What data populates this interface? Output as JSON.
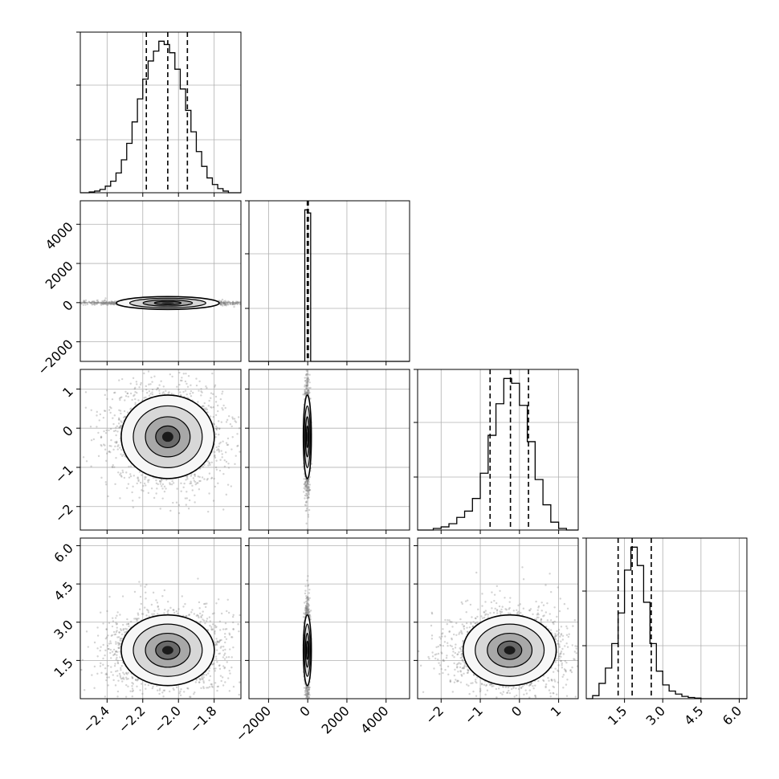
{
  "chart_data": [
    {
      "type": "histogram",
      "panel": "diag-0",
      "xlim": [
        -2.55,
        -1.65
      ],
      "grid": true,
      "bins_x": [
        -2.5,
        -2.47,
        -2.44,
        -2.41,
        -2.38,
        -2.35,
        -2.32,
        -2.29,
        -2.26,
        -2.23,
        -2.2,
        -2.17,
        -2.14,
        -2.11,
        -2.08,
        -2.05,
        -2.02,
        -1.99,
        -1.96,
        -1.93,
        -1.9,
        -1.87,
        -1.84,
        -1.81,
        -1.78,
        -1.75,
        -1.72
      ],
      "counts": [
        0.005,
        0.01,
        0.02,
        0.04,
        0.07,
        0.12,
        0.2,
        0.3,
        0.43,
        0.57,
        0.69,
        0.8,
        0.86,
        0.92,
        0.9,
        0.85,
        0.75,
        0.63,
        0.5,
        0.37,
        0.25,
        0.16,
        0.09,
        0.05,
        0.025,
        0.01
      ],
      "quantile_lines": [
        -2.18,
        -2.06,
        -1.95
      ]
    },
    {
      "type": "histogram",
      "panel": "diag-1",
      "xlim": [
        -3000,
        5200
      ],
      "grid": true,
      "xticks": [
        -2000,
        0,
        2000,
        4000
      ],
      "bins_x": [
        -150,
        0,
        150
      ],
      "counts": [
        0.97,
        0.95
      ],
      "quantile_lines": [
        -20,
        10,
        30
      ]
    },
    {
      "type": "histogram",
      "panel": "diag-2",
      "xlim": [
        -2.6,
        1.5
      ],
      "grid": true,
      "bins_x": [
        -2.2,
        -2.0,
        -1.8,
        -1.6,
        -1.4,
        -1.2,
        -1.0,
        -0.8,
        -0.6,
        -0.4,
        -0.2,
        0.0,
        0.2,
        0.4,
        0.6,
        0.8,
        1.0,
        1.2
      ],
      "counts": [
        0.01,
        0.02,
        0.04,
        0.08,
        0.12,
        0.2,
        0.36,
        0.6,
        0.8,
        0.96,
        0.93,
        0.79,
        0.56,
        0.32,
        0.16,
        0.05,
        0.01
      ],
      "quantile_lines": [
        -0.75,
        -0.23,
        0.23
      ]
    },
    {
      "type": "histogram",
      "panel": "diag-3",
      "xlim": [
        0.0,
        6.3
      ],
      "grid": true,
      "xticks": [
        1.5,
        3.0,
        4.5,
        6.0
      ],
      "xtick_labels": [
        "1.5",
        "3.0",
        "4.5",
        "6.0"
      ],
      "bins_x": [
        0.25,
        0.5,
        0.75,
        1.0,
        1.25,
        1.5,
        1.75,
        2.0,
        2.25,
        2.5,
        2.75,
        3.0,
        3.25,
        3.5,
        3.75,
        4.0,
        4.25,
        4.5
      ],
      "counts": [
        0.02,
        0.1,
        0.2,
        0.36,
        0.56,
        0.84,
        0.99,
        0.87,
        0.63,
        0.36,
        0.18,
        0.09,
        0.05,
        0.03,
        0.015,
        0.008,
        0.004
      ],
      "quantile_lines": [
        1.25,
        1.8,
        2.55
      ]
    },
    {
      "type": "scatter",
      "panel": "p-1-0",
      "xlim": [
        -2.55,
        -1.65
      ],
      "ylim": [
        -3000,
        5200
      ],
      "yticks": [
        -2000,
        0,
        2000,
        4000
      ],
      "center": [
        -2.06,
        -20
      ],
      "contour_radii": [
        0.39,
        0.17,
        0.08,
        0.04
      ],
      "contour_axis_ratio": 0.15,
      "note": "extremely concentrated near 0"
    },
    {
      "type": "scatter",
      "panel": "p-2-0",
      "xlim": [
        -2.55,
        -1.65
      ],
      "ylim": [
        -2.6,
        1.5
      ],
      "yticks": [
        -2,
        -1,
        0,
        1
      ],
      "center": [
        -2.06,
        -0.22
      ],
      "contour_scale": [
        1.0,
        0.74,
        0.48,
        0.26
      ]
    },
    {
      "type": "scatter",
      "panel": "p-2-1",
      "xlim": [
        -3000,
        5200
      ],
      "ylim": [
        -2.6,
        1.5
      ],
      "center": [
        -20,
        -0.22
      ],
      "contour_scale": [
        1.0,
        0.74,
        0.48,
        0.26
      ]
    },
    {
      "type": "scatter",
      "panel": "p-3-0",
      "xlim": [
        -2.55,
        -1.65
      ],
      "ylim": [
        0.0,
        6.3
      ],
      "yticks": [
        1.5,
        3.0,
        4.5,
        6.0
      ],
      "ytick_labels": [
        "1.5",
        "3.0",
        "4.5",
        "6.0"
      ],
      "xticks": [
        -2.4,
        -2.2,
        -2.0,
        -1.8
      ],
      "center": [
        -2.06,
        1.9
      ],
      "contour_scale": [
        1.0,
        0.74,
        0.48,
        0.26
      ]
    },
    {
      "type": "scatter",
      "panel": "p-3-1",
      "xlim": [
        -3000,
        5200
      ],
      "ylim": [
        0.0,
        6.3
      ],
      "xticks": [
        -2000,
        0,
        2000,
        4000
      ],
      "center": [
        -20,
        1.9
      ],
      "contour_scale": [
        1.0,
        0.74,
        0.48,
        0.26
      ]
    },
    {
      "type": "scatter",
      "panel": "p-3-2",
      "xlim": [
        -2.6,
        1.5
      ],
      "ylim": [
        0.0,
        6.3
      ],
      "xticks": [
        -2,
        -1,
        0,
        1
      ],
      "center": [
        -0.25,
        1.9
      ],
      "contour_scale": [
        1.0,
        0.74,
        0.48,
        0.26
      ]
    }
  ],
  "theme": {
    "line_color": "#000000",
    "grid_color": "#b0b0b0",
    "point_color": "#808080"
  }
}
